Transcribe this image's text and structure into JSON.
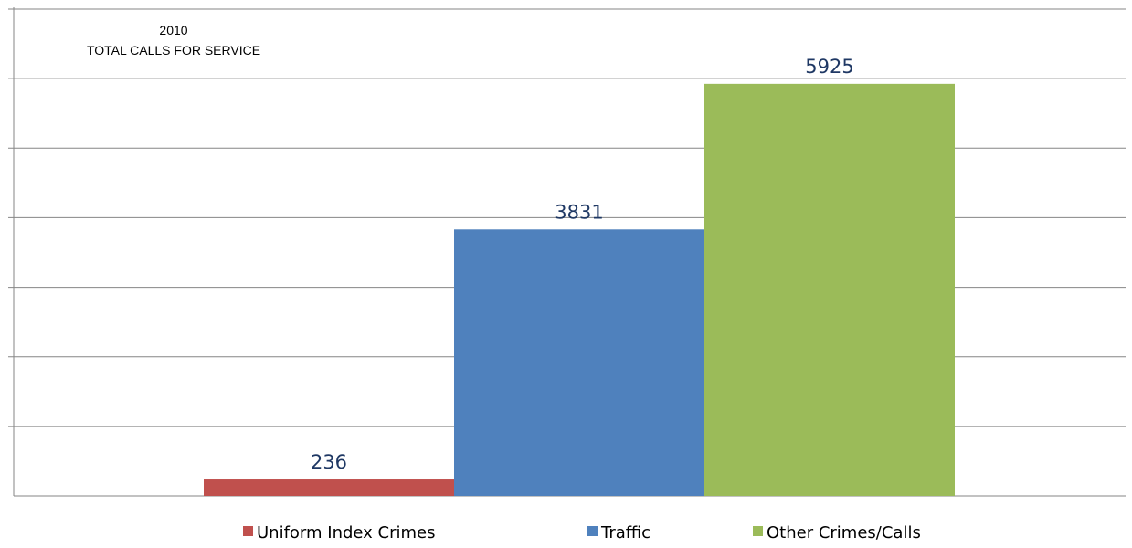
{
  "chart_data": {
    "type": "bar",
    "title": [
      "2010",
      "TOTAL CALLS FOR SERVICE"
    ],
    "xlabel": "",
    "ylabel": "",
    "ylim": [
      0,
      7000
    ],
    "grid": true,
    "legend_placement": "bottom",
    "series": [
      {
        "name": "Uniform Index Crimes",
        "value": 236,
        "color": "#c0504d"
      },
      {
        "name": "Traffic",
        "value": 3831,
        "color": "#4f81bd"
      },
      {
        "name": "Other Crimes/Calls",
        "value": 5925,
        "color": "#9bbb59"
      }
    ]
  }
}
